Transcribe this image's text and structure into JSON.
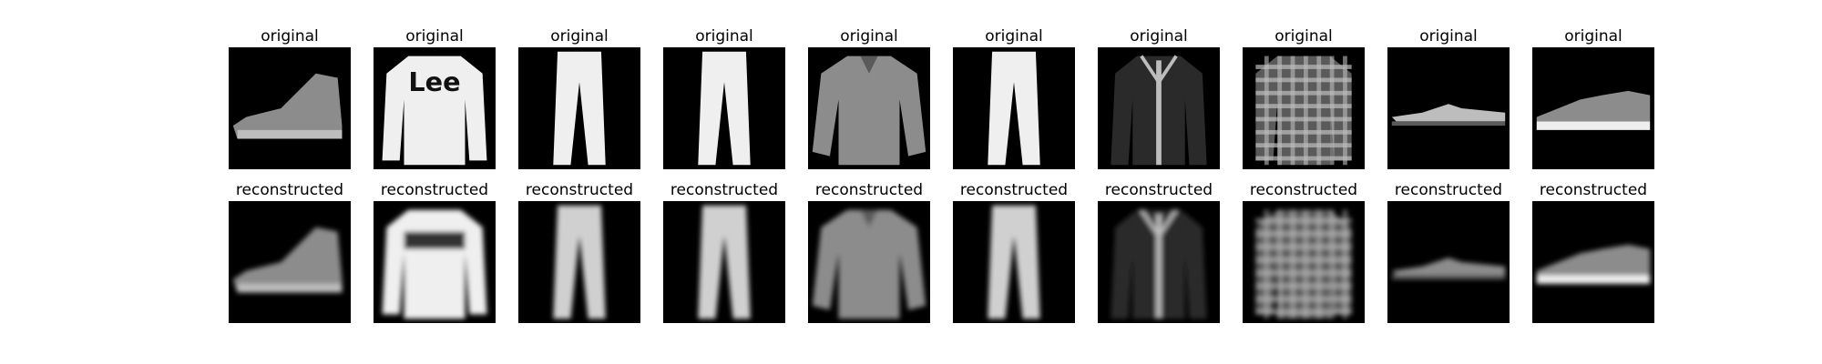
{
  "columns": [
    {
      "top_title": "original",
      "bottom_title": "reconstructed",
      "item": "ankle-boot"
    },
    {
      "top_title": "original",
      "bottom_title": "reconstructed",
      "item": "pullover"
    },
    {
      "top_title": "original",
      "bottom_title": "reconstructed",
      "item": "trouser"
    },
    {
      "top_title": "original",
      "bottom_title": "reconstructed",
      "item": "trouser"
    },
    {
      "top_title": "original",
      "bottom_title": "reconstructed",
      "item": "shirt"
    },
    {
      "top_title": "original",
      "bottom_title": "reconstructed",
      "item": "trouser"
    },
    {
      "top_title": "original",
      "bottom_title": "reconstructed",
      "item": "coat"
    },
    {
      "top_title": "original",
      "bottom_title": "reconstructed",
      "item": "shirt-plaid"
    },
    {
      "top_title": "original",
      "bottom_title": "reconstructed",
      "item": "sandal"
    },
    {
      "top_title": "original",
      "bottom_title": "reconstructed",
      "item": "sneaker"
    }
  ],
  "colors": {
    "background": "#000000",
    "figure_bg": "#ffffff"
  }
}
